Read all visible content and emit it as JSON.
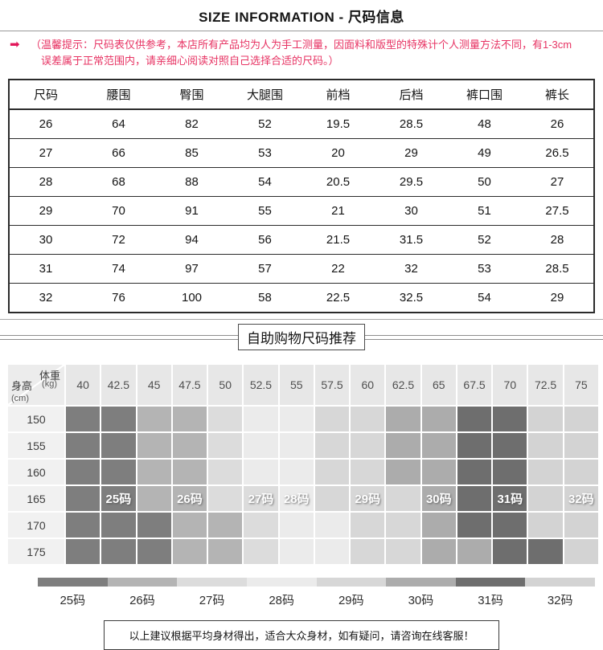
{
  "title": "SIZE INFORMATION - 尺码信息",
  "tip": {
    "arrow_icon": "right-arrow",
    "color": "#e73363",
    "line1": "（温馨提示：尺码表仅供参考，本店所有产品均为人为手工测量，因面料和版型的特殊计个人测量方法不同，有1-3cm",
    "line2": "误差属于正常范围内，请亲细心阅读对照自己选择合适的尺码。）"
  },
  "section2_heading": "自助购物尺码推荐",
  "footer_note": "以上建议根据平均身材得出，适合大众身材，如有疑问，请咨询在线客服！",
  "chart_data": [
    {
      "type": "table",
      "title": "尺码信息",
      "columns": [
        "尺码",
        "腰围",
        "臀围",
        "大腿围",
        "前档",
        "后档",
        "裤口围",
        "裤长"
      ],
      "rows": [
        [
          "26",
          "64",
          "82",
          "52",
          "19.5",
          "28.5",
          "48",
          "26"
        ],
        [
          "27",
          "66",
          "85",
          "53",
          "20",
          "29",
          "49",
          "26.5"
        ],
        [
          "28",
          "68",
          "88",
          "54",
          "20.5",
          "29.5",
          "50",
          "27"
        ],
        [
          "29",
          "70",
          "91",
          "55",
          "21",
          "30",
          "51",
          "27.5"
        ],
        [
          "30",
          "72",
          "94",
          "56",
          "21.5",
          "31.5",
          "52",
          "28"
        ],
        [
          "31",
          "74",
          "97",
          "57",
          "22",
          "32",
          "53",
          "28.5"
        ],
        [
          "32",
          "76",
          "100",
          "58",
          "22.5",
          "32.5",
          "54",
          "29"
        ]
      ]
    },
    {
      "type": "heatmap",
      "title": "自助购物尺码推荐",
      "x_axis_label": "体重",
      "x_axis_unit": "(kg)",
      "y_axis_label": "身高",
      "y_axis_unit": "(cm)",
      "x_ticks": [
        "40",
        "42.5",
        "45",
        "47.5",
        "50",
        "52.5",
        "55",
        "57.5",
        "60",
        "62.5",
        "65",
        "67.5",
        "70",
        "72.5",
        "75"
      ],
      "y_ticks": [
        "150",
        "155",
        "160",
        "165",
        "170",
        "175"
      ],
      "cell_size_codes": [
        [
          "25",
          "25",
          "26",
          "26",
          "27",
          "28",
          "28",
          "29",
          "29",
          "30",
          "30",
          "31",
          "31",
          "32",
          "32"
        ],
        [
          "25",
          "25",
          "26",
          "26",
          "27",
          "28",
          "28",
          "29",
          "29",
          "30",
          "30",
          "31",
          "31",
          "32",
          "32"
        ],
        [
          "25",
          "25",
          "26",
          "26",
          "27",
          "28",
          "28",
          "29",
          "29",
          "30",
          "30",
          "31",
          "31",
          "32",
          "32"
        ],
        [
          "25",
          "25",
          "26",
          "26",
          "27",
          "27",
          "28",
          "29",
          "29",
          "29",
          "30",
          "31",
          "31",
          "32",
          "32"
        ],
        [
          "25",
          "25",
          "25",
          "26",
          "26",
          "27",
          "28",
          "28",
          "29",
          "29",
          "30",
          "31",
          "31",
          "32",
          "32"
        ],
        [
          "25",
          "25",
          "25",
          "26",
          "26",
          "27",
          "28",
          "28",
          "29",
          "29",
          "30",
          "30",
          "31",
          "31",
          "32"
        ]
      ],
      "cell_labels": {
        "row_index": 3,
        "labels": {
          "1": "25码",
          "3": "26码",
          "5": "27码",
          "6": "28码",
          "8": "29码",
          "10": "30码",
          "12": "31码",
          "14": "32码"
        }
      },
      "size_colors": {
        "25": "#7e7e7e",
        "26": "#b4b4b4",
        "27": "#dcdcdc",
        "28": "#ebebeb",
        "29": "#d7d7d7",
        "30": "#acacac",
        "31": "#6e6e6e",
        "32": "#d3d3d3"
      },
      "legend": [
        {
          "label": "25码",
          "size": "25"
        },
        {
          "label": "26码",
          "size": "26"
        },
        {
          "label": "27码",
          "size": "27"
        },
        {
          "label": "28码",
          "size": "28"
        },
        {
          "label": "29码",
          "size": "29"
        },
        {
          "label": "30码",
          "size": "30"
        },
        {
          "label": "31码",
          "size": "31"
        },
        {
          "label": "32码",
          "size": "32"
        }
      ]
    }
  ]
}
